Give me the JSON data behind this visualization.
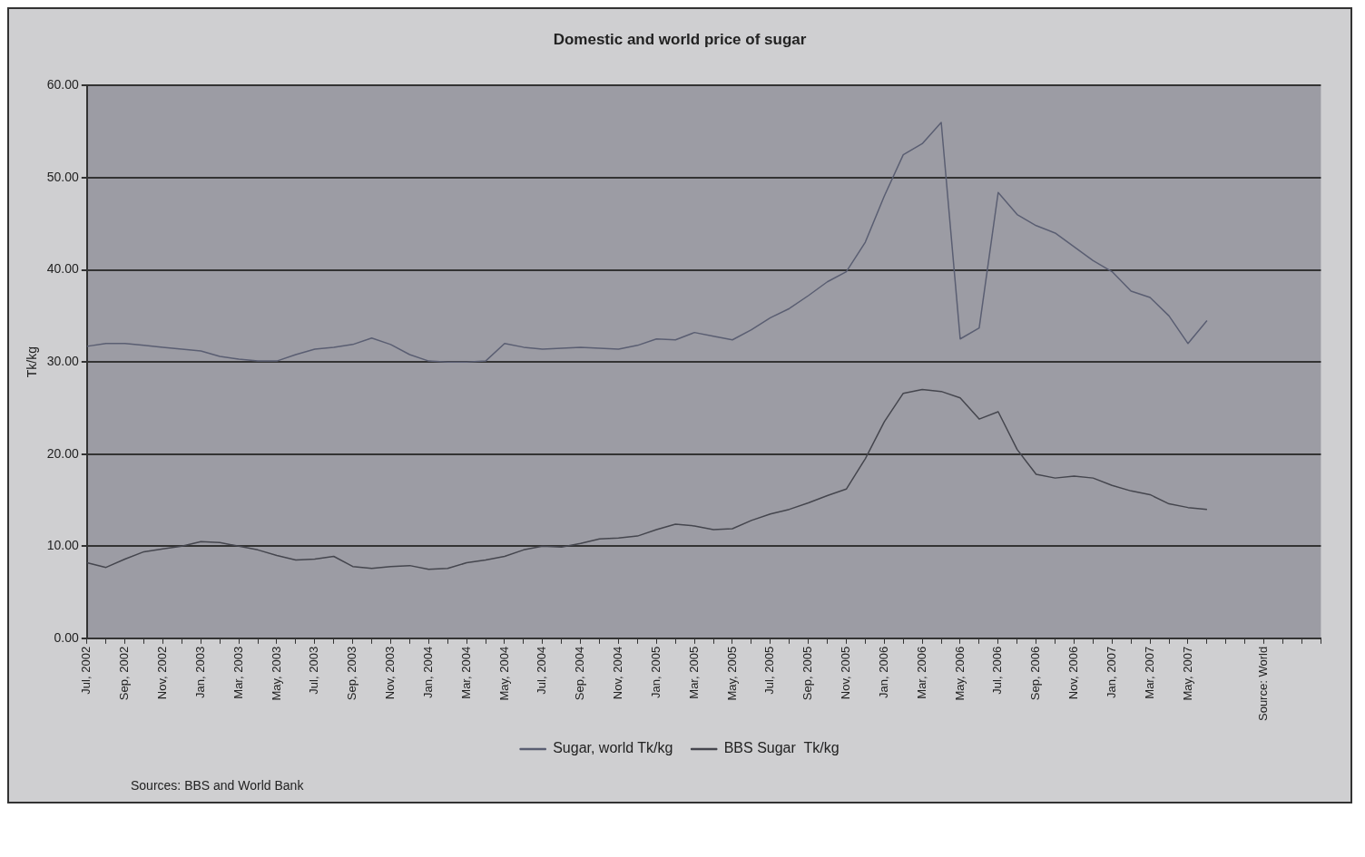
{
  "chart_data": {
    "type": "line",
    "title": "Domestic and world price of sugar",
    "ylabel": "Tk/kg",
    "categories": [
      "Jul, 2002",
      null,
      "Sep, 2002",
      null,
      "Nov, 2002",
      null,
      "Jan, 2003",
      null,
      "Mar, 2003",
      null,
      "May, 2003",
      null,
      "Jul, 2003",
      null,
      "Sep, 2003",
      null,
      "Nov, 2003",
      null,
      "Jan, 2004",
      null,
      "Mar, 2004",
      null,
      "May, 2004",
      null,
      "Jul, 2004",
      null,
      "Sep, 2004",
      null,
      "Nov, 2004",
      null,
      "Jan, 2005",
      null,
      "Mar, 2005",
      null,
      "May, 2005",
      null,
      "Jul, 2005",
      null,
      "Sep, 2005",
      null,
      "Nov, 2005",
      null,
      "Jan, 2006",
      null,
      "Mar, 2006",
      null,
      "May, 2006",
      null,
      "Jul, 2006",
      null,
      "Sep, 2006",
      null,
      "Nov, 2006",
      null,
      "Jan, 2007",
      null,
      "Mar, 2007",
      null,
      "May, 2007",
      null,
      null,
      null,
      "Source: World",
      null,
      null,
      null
    ],
    "series": [
      {
        "name": "Sugar, world Tk/kg",
        "color": "#5a5e72",
        "values": [
          31.7,
          32,
          32,
          31.8,
          31.6,
          31.4,
          31.2,
          30.6,
          30.3,
          30.1,
          30.1,
          30.8,
          31.4,
          31.6,
          31.9,
          32.6,
          31.9,
          30.8,
          30.1,
          30,
          30,
          30.1,
          32,
          31.6,
          31.4,
          31.5,
          31.6,
          31.5,
          31.4,
          31.8,
          32.5,
          32.4,
          33.2,
          32.8,
          32.4,
          33.5,
          34.8,
          35.8,
          37.2,
          38.7,
          39.8,
          43,
          48,
          52.5,
          53.7,
          56,
          32.5,
          33.7,
          48.4,
          46,
          44.8,
          44,
          42.5,
          41,
          39.8,
          37.7,
          37,
          35,
          32,
          34.5,
          null,
          null,
          null,
          null,
          null,
          null
        ]
      },
      {
        "name": "BBS Sugar  Tk/kg",
        "color": "#45464e",
        "values": [
          8.2,
          7.7,
          8.6,
          9.4,
          9.7,
          10,
          10.5,
          10.4,
          10,
          9.6,
          9,
          8.5,
          8.6,
          8.9,
          7.8,
          7.6,
          7.8,
          7.9,
          7.5,
          7.6,
          8.2,
          8.5,
          8.9,
          9.6,
          10,
          9.9,
          10.3,
          10.8,
          10.9,
          11.1,
          11.8,
          12.4,
          12.2,
          11.8,
          11.9,
          12.8,
          13.5,
          14,
          14.7,
          15.5,
          16.2,
          19.5,
          23.5,
          26.6,
          27,
          26.8,
          26.1,
          23.8,
          24.6,
          20.5,
          17.8,
          17.4,
          17.6,
          17.4,
          16.6,
          16,
          15.6,
          14.6,
          14.2,
          14,
          null,
          null,
          null,
          null,
          null,
          null
        ]
      }
    ],
    "ylim": [
      0,
      60
    ],
    "yticks": [
      {
        "value": 0,
        "label": "0.00"
      },
      {
        "value": 10,
        "label": "10.00"
      },
      {
        "value": 20,
        "label": "20.00"
      },
      {
        "value": 30,
        "label": "30.00"
      },
      {
        "value": 40,
        "label": "40.00"
      },
      {
        "value": 50,
        "label": "50.00"
      },
      {
        "value": 60,
        "label": "60.00"
      }
    ],
    "grid": "y",
    "legend": "bottom",
    "marker": "none",
    "line_style": "solid",
    "annotations": [
      "Sources: BBS and World Bank"
    ]
  }
}
